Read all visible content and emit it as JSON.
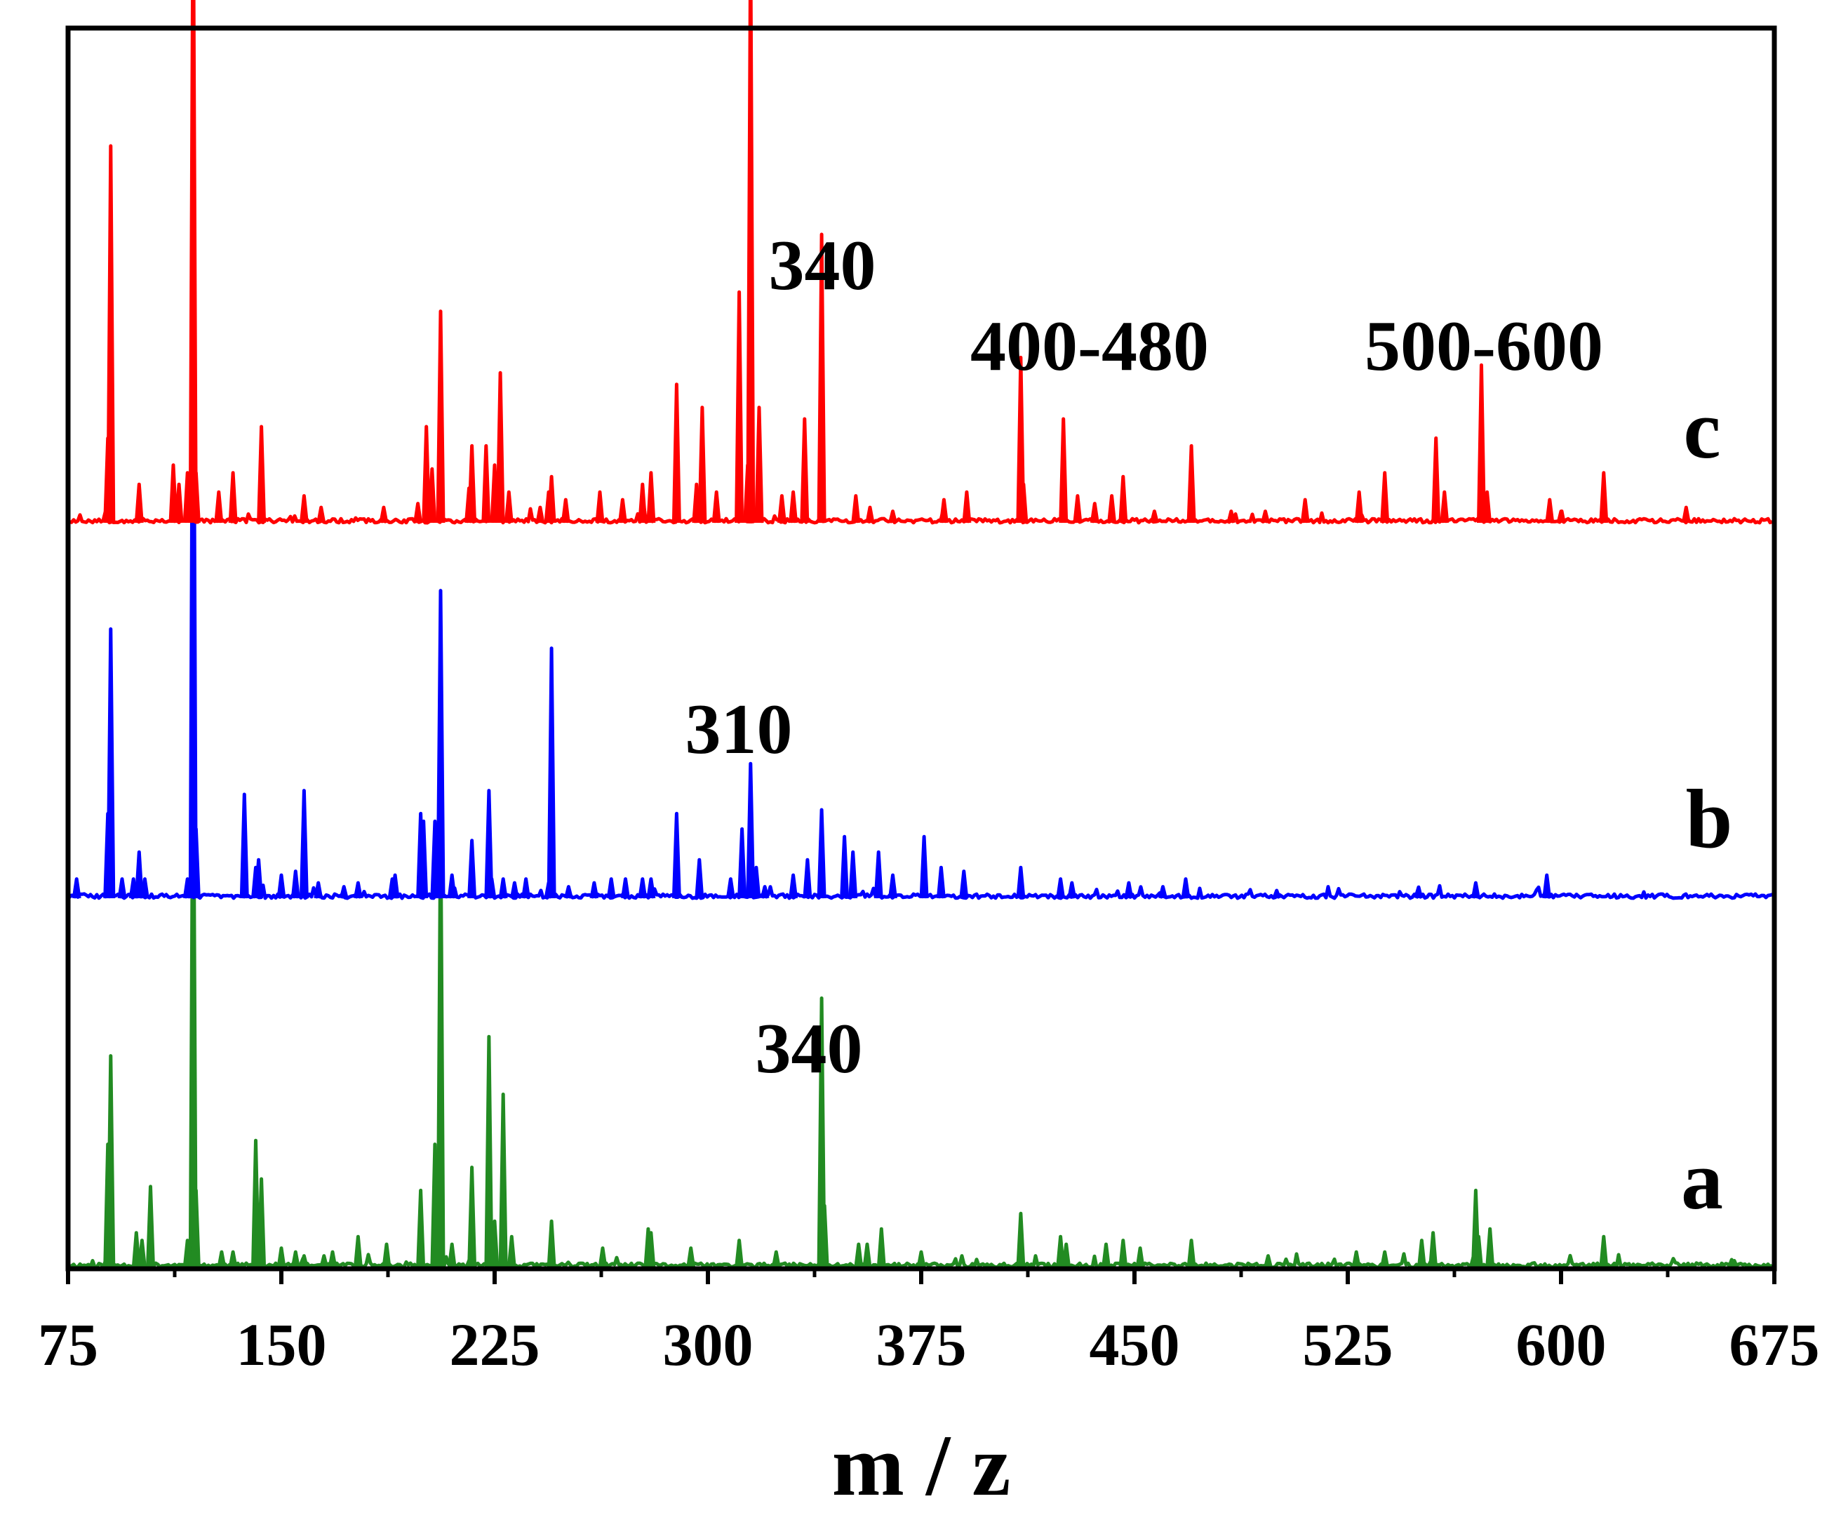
{
  "chart_data": {
    "type": "line",
    "title": "",
    "xlabel": "m / z",
    "ylabel": "",
    "xlim": [
      75,
      675
    ],
    "xticks": [
      "75",
      "150",
      "225",
      "300",
      "375",
      "450",
      "525",
      "600",
      "675"
    ],
    "yticks": [],
    "grid": false,
    "legend": "none",
    "series": [
      {
        "name": "a",
        "color": "#228B22",
        "peaks": [
          [
            89,
            32
          ],
          [
            90,
            55
          ],
          [
            99,
            9
          ],
          [
            101,
            7
          ],
          [
            104,
            21
          ],
          [
            117,
            7
          ],
          [
            119,
            150
          ],
          [
            120,
            20
          ],
          [
            129,
            4
          ],
          [
            133,
            4
          ],
          [
            141,
            33
          ],
          [
            142,
            14
          ],
          [
            143,
            23
          ],
          [
            150,
            5
          ],
          [
            155,
            4
          ],
          [
            158,
            3
          ],
          [
            165,
            3
          ],
          [
            168,
            4
          ],
          [
            177,
            8
          ],
          [
            187,
            6
          ],
          [
            199,
            20
          ],
          [
            204,
            32
          ],
          [
            206,
            118
          ],
          [
            210,
            6
          ],
          [
            217,
            26
          ],
          [
            223,
            60
          ],
          [
            225,
            12
          ],
          [
            228,
            45
          ],
          [
            231,
            8
          ],
          [
            245,
            12
          ],
          [
            263,
            5
          ],
          [
            279,
            10
          ],
          [
            280,
            9
          ],
          [
            294,
            5
          ],
          [
            311,
            7
          ],
          [
            324,
            4
          ],
          [
            340,
            70
          ],
          [
            341,
            16
          ],
          [
            353,
            6
          ],
          [
            356,
            6
          ],
          [
            361,
            10
          ],
          [
            375,
            4
          ],
          [
            410,
            14
          ],
          [
            424,
            8
          ],
          [
            426,
            6
          ],
          [
            440,
            6
          ],
          [
            446,
            7
          ],
          [
            452,
            5
          ],
          [
            470,
            7
          ],
          [
            497,
            3
          ],
          [
            528,
            4
          ],
          [
            538,
            4
          ],
          [
            551,
            7
          ],
          [
            555,
            9
          ],
          [
            570,
            20
          ],
          [
            571,
            8
          ],
          [
            575,
            10
          ],
          [
            615,
            8
          ],
          [
            660,
            2
          ]
        ]
      },
      {
        "name": "b",
        "color": "#0000FF",
        "peaks": [
          [
            78,
            5
          ],
          [
            89,
            22
          ],
          [
            90,
            70
          ],
          [
            94,
            5
          ],
          [
            98,
            5
          ],
          [
            100,
            12
          ],
          [
            102,
            5
          ],
          [
            117,
            5
          ],
          [
            119,
            180
          ],
          [
            120,
            18
          ],
          [
            137,
            27
          ],
          [
            141,
            8
          ],
          [
            142,
            10
          ],
          [
            150,
            6
          ],
          [
            155,
            7
          ],
          [
            158,
            28
          ],
          [
            163,
            4
          ],
          [
            172,
            3
          ],
          [
            177,
            4
          ],
          [
            189,
            5
          ],
          [
            190,
            6
          ],
          [
            199,
            22
          ],
          [
            200,
            20
          ],
          [
            204,
            20
          ],
          [
            206,
            80
          ],
          [
            210,
            6
          ],
          [
            217,
            15
          ],
          [
            223,
            28
          ],
          [
            224,
            5
          ],
          [
            228,
            5
          ],
          [
            232,
            4
          ],
          [
            236,
            5
          ],
          [
            244,
            4
          ],
          [
            245,
            65
          ],
          [
            251,
            3
          ],
          [
            260,
            4
          ],
          [
            266,
            5
          ],
          [
            271,
            5
          ],
          [
            277,
            5
          ],
          [
            280,
            5
          ],
          [
            289,
            22
          ],
          [
            297,
            10
          ],
          [
            308,
            5
          ],
          [
            312,
            18
          ],
          [
            315,
            35
          ],
          [
            317,
            8
          ],
          [
            320,
            3
          ],
          [
            330,
            6
          ],
          [
            335,
            10
          ],
          [
            340,
            23
          ],
          [
            348,
            16
          ],
          [
            351,
            12
          ],
          [
            360,
            12
          ],
          [
            365,
            6
          ],
          [
            376,
            16
          ],
          [
            382,
            8
          ],
          [
            390,
            7
          ],
          [
            410,
            8
          ],
          [
            424,
            5
          ],
          [
            428,
            4
          ],
          [
            448,
            4
          ],
          [
            460,
            3
          ],
          [
            468,
            5
          ],
          [
            500,
            2
          ],
          [
            550,
            2
          ],
          [
            570,
            4
          ],
          [
            595,
            6
          ]
        ]
      },
      {
        "name": "c",
        "color": "#FF0000",
        "peaks": [
          [
            89,
            22
          ],
          [
            90,
            98
          ],
          [
            100,
            10
          ],
          [
            112,
            15
          ],
          [
            114,
            10
          ],
          [
            117,
            13
          ],
          [
            119,
            170
          ],
          [
            120,
            13
          ],
          [
            128,
            8
          ],
          [
            133,
            13
          ],
          [
            143,
            25
          ],
          [
            158,
            7
          ],
          [
            164,
            4
          ],
          [
            186,
            4
          ],
          [
            198,
            5
          ],
          [
            201,
            25
          ],
          [
            203,
            14
          ],
          [
            206,
            55
          ],
          [
            216,
            9
          ],
          [
            217,
            20
          ],
          [
            222,
            20
          ],
          [
            225,
            15
          ],
          [
            227,
            39
          ],
          [
            230,
            8
          ],
          [
            241,
            4
          ],
          [
            244,
            8
          ],
          [
            245,
            12
          ],
          [
            250,
            6
          ],
          [
            262,
            8
          ],
          [
            270,
            6
          ],
          [
            277,
            10
          ],
          [
            280,
            13
          ],
          [
            289,
            36
          ],
          [
            296,
            10
          ],
          [
            298,
            30
          ],
          [
            303,
            8
          ],
          [
            311,
            60
          ],
          [
            314,
            15
          ],
          [
            315,
            152
          ],
          [
            318,
            30
          ],
          [
            326,
            7
          ],
          [
            330,
            8
          ],
          [
            334,
            27
          ],
          [
            340,
            75
          ],
          [
            352,
            7
          ],
          [
            357,
            4
          ],
          [
            365,
            3
          ],
          [
            383,
            6
          ],
          [
            391,
            8
          ],
          [
            410,
            43
          ],
          [
            411,
            10
          ],
          [
            425,
            27
          ],
          [
            430,
            7
          ],
          [
            436,
            5
          ],
          [
            442,
            7
          ],
          [
            446,
            12
          ],
          [
            457,
            3
          ],
          [
            470,
            20
          ],
          [
            484,
            3
          ],
          [
            496,
            3
          ],
          [
            510,
            6
          ],
          [
            529,
            8
          ],
          [
            538,
            13
          ],
          [
            556,
            22
          ],
          [
            559,
            8
          ],
          [
            572,
            41
          ],
          [
            574,
            8
          ],
          [
            596,
            6
          ],
          [
            600,
            3
          ],
          [
            615,
            13
          ],
          [
            644,
            4
          ]
        ]
      }
    ],
    "annotations": [
      {
        "text": "340",
        "series": "c"
      },
      {
        "text": "400-480",
        "series": "c"
      },
      {
        "text": "500-600",
        "series": "c"
      },
      {
        "text": "310",
        "series": "b"
      },
      {
        "text": "340",
        "series": "a"
      }
    ]
  }
}
